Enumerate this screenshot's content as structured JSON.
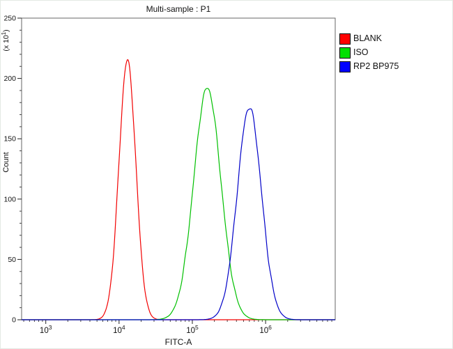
{
  "window": {
    "title": "Multi-sample : P1"
  },
  "chart_data": {
    "type": "line",
    "subtype": "flow-cytometry-histogram-overlay",
    "title": "Multi-sample : P1",
    "xlabel": "FITC-A",
    "ylabel": "Count",
    "y_unit_prefix": "(x 10",
    "y_unit_exp": "1",
    "y_unit_suffix": ")",
    "x_scale": "log10",
    "x_log_min": 2.67,
    "x_log_max": 6.95,
    "ylim": [
      0,
      250
    ],
    "y_major_ticks": [
      0,
      50,
      100,
      150,
      200,
      250
    ],
    "y_minor_step": 10,
    "x_major_ticks": [
      {
        "base": "10",
        "exp": "3",
        "value": 1000
      },
      {
        "base": "10",
        "exp": "4",
        "value": 10000
      },
      {
        "base": "10",
        "exp": "5",
        "value": 100000
      },
      {
        "base": "10",
        "exp": "6",
        "value": 1000000
      }
    ],
    "grid": false,
    "legend_position": "top-right",
    "series": [
      {
        "name": "BLANK",
        "color": "#f20000",
        "swatch": "#ff0000",
        "peak_x": 13000,
        "peak_count": 215,
        "sigma_log10": 0.115
      },
      {
        "name": "ISO",
        "color": "#00c000",
        "swatch": "#00e000",
        "peak_x": 160000,
        "peak_count": 192,
        "sigma_log10": 0.185
      },
      {
        "name": "RP2 BP975",
        "color": "#0000c8",
        "swatch": "#0000ff",
        "peak_x": 600000,
        "peak_count": 176,
        "sigma_log10": 0.165
      }
    ]
  }
}
